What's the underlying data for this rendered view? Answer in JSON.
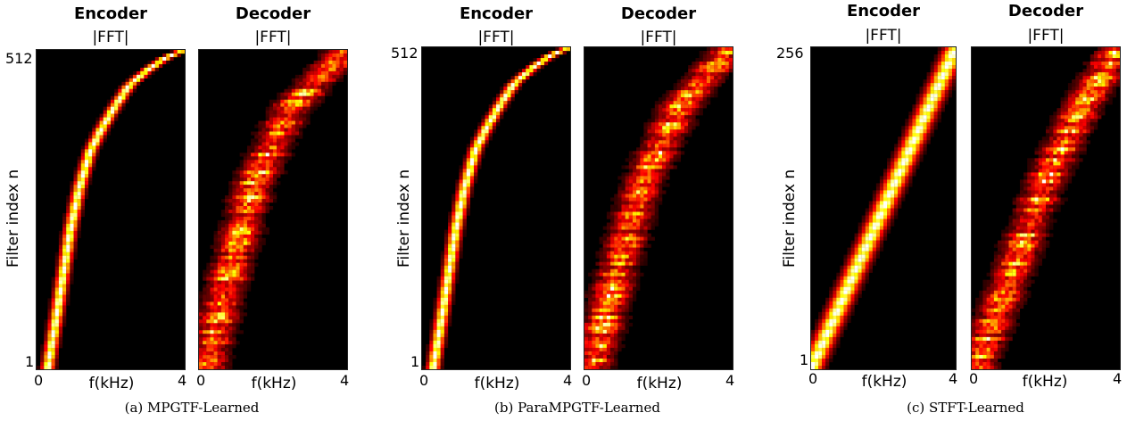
{
  "figure": {
    "panels": [
      {
        "caption": "(a)  MPGTF-Learned",
        "ylabel": "Filter index n",
        "xlabel": "f(kHz)",
        "y_ticks": [
          "512",
          "1"
        ],
        "encoder": {
          "title": "Encoder",
          "subtitle": "|FFT|",
          "x_ticks": [
            "0",
            "4"
          ]
        },
        "decoder": {
          "title": "Decoder",
          "subtitle": "|FFT|",
          "x_ticks": [
            "0",
            "4"
          ]
        }
      },
      {
        "caption": "(b)  ParaMPGTF-Learned",
        "ylabel": "Filter index n",
        "xlabel": "f(kHz)",
        "y_ticks": [
          "512",
          "1"
        ],
        "encoder": {
          "title": "Encoder",
          "subtitle": "|FFT|",
          "x_ticks": [
            "0",
            "4"
          ]
        },
        "decoder": {
          "title": "Decoder",
          "subtitle": "|FFT|",
          "x_ticks": [
            "0",
            "4"
          ]
        }
      },
      {
        "caption": "(c)  STFT-Learned",
        "ylabel": "Filter index n",
        "xlabel": "f(kHz)",
        "y_ticks": [
          "256",
          "1"
        ],
        "encoder": {
          "title": "Encoder",
          "subtitle": "|FFT|",
          "x_ticks": [
            "0",
            "4"
          ]
        },
        "decoder": {
          "title": "Decoder",
          "subtitle": "|FFT|",
          "x_ticks": [
            "0",
            "4"
          ]
        }
      }
    ]
  },
  "chart_data": [
    {
      "type": "heatmap",
      "title": "Encoder",
      "subtitle": "|FFT|",
      "xlabel": "f(kHz)",
      "ylabel": "Filter index n",
      "xlim": [
        0,
        4
      ],
      "ylim": [
        1,
        512
      ],
      "colormap": "hot",
      "ridge": {
        "description": "mel-like staircase",
        "points": [
          [
            0.3,
            1
          ],
          [
            0.55,
            90
          ],
          [
            0.9,
            220
          ],
          [
            1.15,
            290
          ],
          [
            1.45,
            350
          ],
          [
            1.75,
            385
          ],
          [
            2.1,
            420
          ],
          [
            2.5,
            455
          ],
          [
            3.0,
            480
          ],
          [
            3.5,
            500
          ],
          [
            4.0,
            512
          ]
        ]
      }
    },
    {
      "type": "heatmap",
      "title": "Decoder",
      "subtitle": "|FFT|",
      "xlabel": "f(kHz)",
      "xlim": [
        0,
        4
      ],
      "ylim": [
        1,
        512
      ],
      "colormap": "hot",
      "ridge": {
        "description": "diffuse diagonal",
        "points": [
          [
            0.2,
            1
          ],
          [
            0.8,
            150
          ],
          [
            1.5,
            300
          ],
          [
            2.5,
            420
          ],
          [
            4.0,
            512
          ]
        ]
      }
    },
    {
      "type": "heatmap",
      "title": "Encoder",
      "subtitle": "|FFT|",
      "xlabel": "f(kHz)",
      "ylabel": "Filter index n",
      "xlim": [
        0,
        4
      ],
      "ylim": [
        1,
        512
      ],
      "colormap": "hot",
      "ridge": {
        "description": "mel-like staircase",
        "points": [
          [
            0.3,
            1
          ],
          [
            0.55,
            90
          ],
          [
            0.9,
            220
          ],
          [
            1.15,
            290
          ],
          [
            1.45,
            350
          ],
          [
            1.75,
            385
          ],
          [
            2.1,
            420
          ],
          [
            2.5,
            455
          ],
          [
            3.0,
            480
          ],
          [
            3.5,
            500
          ],
          [
            4.0,
            512
          ]
        ]
      }
    },
    {
      "type": "heatmap",
      "title": "Decoder",
      "subtitle": "|FFT|",
      "xlabel": "f(kHz)",
      "xlim": [
        0,
        4
      ],
      "ylim": [
        1,
        512
      ],
      "colormap": "hot",
      "ridge": {
        "description": "diffuse diagonal",
        "points": [
          [
            0.2,
            1
          ],
          [
            0.9,
            160
          ],
          [
            1.6,
            300
          ],
          [
            2.6,
            420
          ],
          [
            4.0,
            512
          ]
        ]
      }
    },
    {
      "type": "heatmap",
      "title": "Encoder",
      "subtitle": "|FFT|",
      "xlabel": "f(kHz)",
      "ylabel": "Filter index n",
      "xlim": [
        0,
        4
      ],
      "ylim": [
        1,
        256
      ],
      "colormap": "hot",
      "ridge": {
        "description": "linear diagonal",
        "points": [
          [
            0.0,
            1
          ],
          [
            4.0,
            256
          ]
        ]
      }
    },
    {
      "type": "heatmap",
      "title": "Decoder",
      "subtitle": "|FFT|",
      "xlabel": "f(kHz)",
      "xlim": [
        0,
        4
      ],
      "ylim": [
        1,
        256
      ],
      "colormap": "hot",
      "ridge": {
        "description": "noisy diagonal",
        "points": [
          [
            0.1,
            1
          ],
          [
            1.0,
            70
          ],
          [
            2.0,
            150
          ],
          [
            3.0,
            210
          ],
          [
            4.0,
            256
          ]
        ]
      }
    }
  ]
}
